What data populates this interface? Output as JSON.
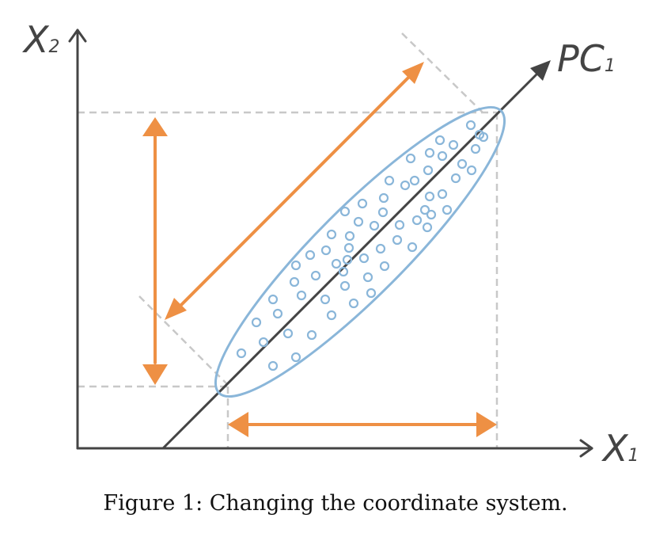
{
  "labels": {
    "x_axis": "X",
    "x_axis_sub": "1",
    "y_axis": "X",
    "y_axis_sub": "2",
    "pc_axis": "PC",
    "pc_axis_sub": "1"
  },
  "caption": "Figure 1: Changing the coordinate system.",
  "colors": {
    "axis": "#444444",
    "guide": "#c8c8c8",
    "arrow": "#ee9044",
    "ellipse": "#8ab6d9",
    "points": "#8ab6d9"
  },
  "icons": {
    "axis_tip": "arrowhead-icon",
    "span_arrow": "double-arrow-icon"
  }
}
